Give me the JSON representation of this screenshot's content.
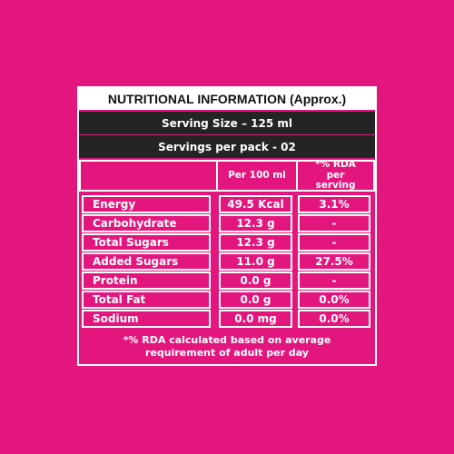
{
  "header": {
    "title": "NUTRITIONAL INFORMATION (Approx.)"
  },
  "serving": {
    "size": "Serving Size – 125 ml",
    "per_pack": "Servings per pack - 02"
  },
  "table": {
    "columns": [
      "Per 100 ml",
      "*% RDA per serving"
    ],
    "rows": [
      [
        "Energy",
        "49.5 Kcal",
        "3.1%"
      ],
      [
        "Carbohydrate",
        "12.3 g",
        "-"
      ],
      [
        "Total Sugars",
        "12.3 g",
        "-"
      ],
      [
        "Added Sugars",
        "11.0 g",
        "27.5%"
      ],
      [
        "Protein",
        "0.0 g",
        "-"
      ],
      [
        "Total Fat",
        "0.0 g",
        "0.0%"
      ],
      [
        "Sodium",
        "0.0 mg",
        "0.0%"
      ]
    ]
  },
  "footnote": "*% RDA calculated based on average requirement of adult per day"
}
